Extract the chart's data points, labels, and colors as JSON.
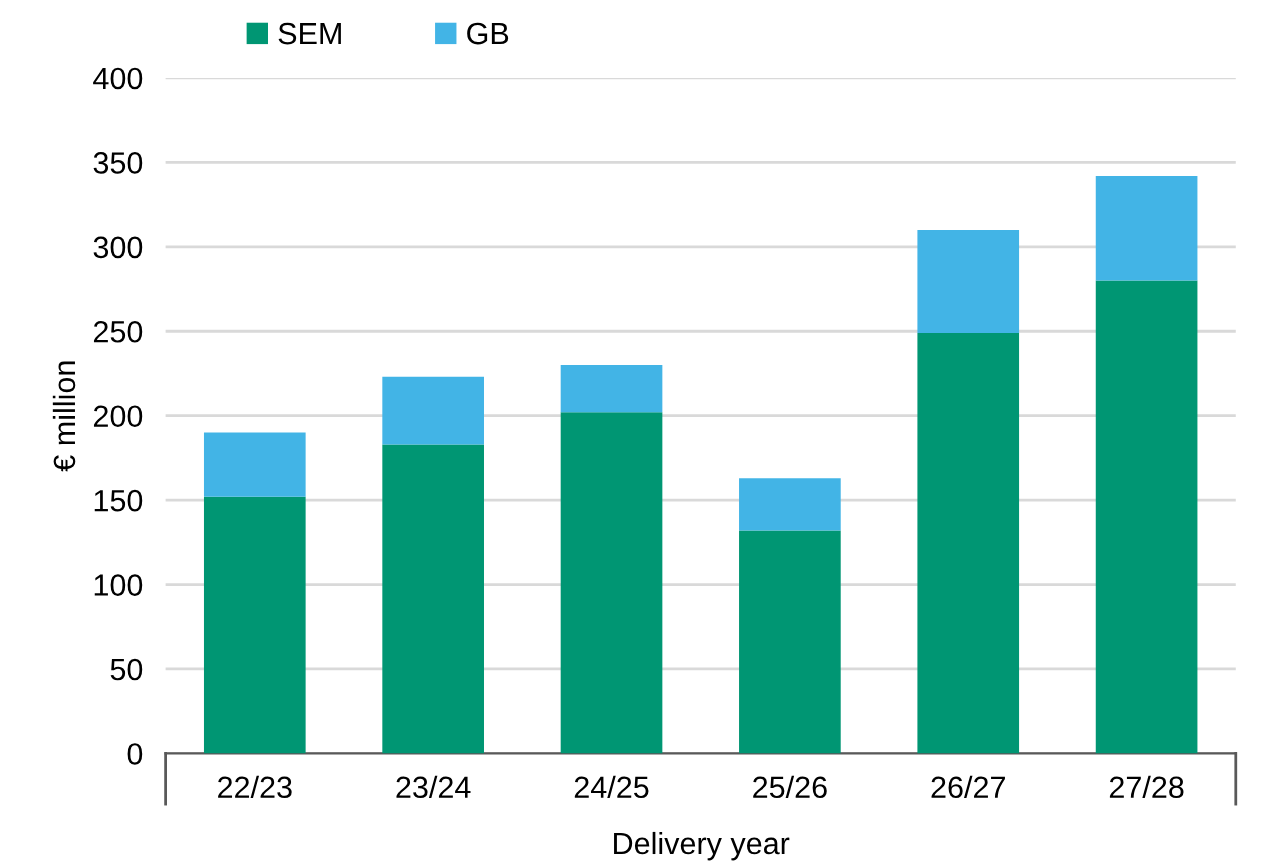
{
  "chart_data": {
    "type": "bar",
    "stacked": true,
    "xlabel": "Delivery year",
    "ylabel": "€ million",
    "categories": [
      "22/23",
      "23/24",
      "24/25",
      "25/26",
      "26/27",
      "27/28"
    ],
    "series": [
      {
        "name": "SEM",
        "color": "#009673",
        "values": [
          152,
          183,
          202,
          132,
          249,
          280
        ]
      },
      {
        "name": "GB",
        "color": "#42b4e6",
        "values": [
          38,
          40,
          28,
          31,
          61,
          62
        ]
      }
    ],
    "ylim": [
      0,
      400
    ],
    "yticks": [
      0,
      50,
      100,
      150,
      200,
      250,
      300,
      350,
      400
    ],
    "grid": "y",
    "legend": "top left"
  }
}
